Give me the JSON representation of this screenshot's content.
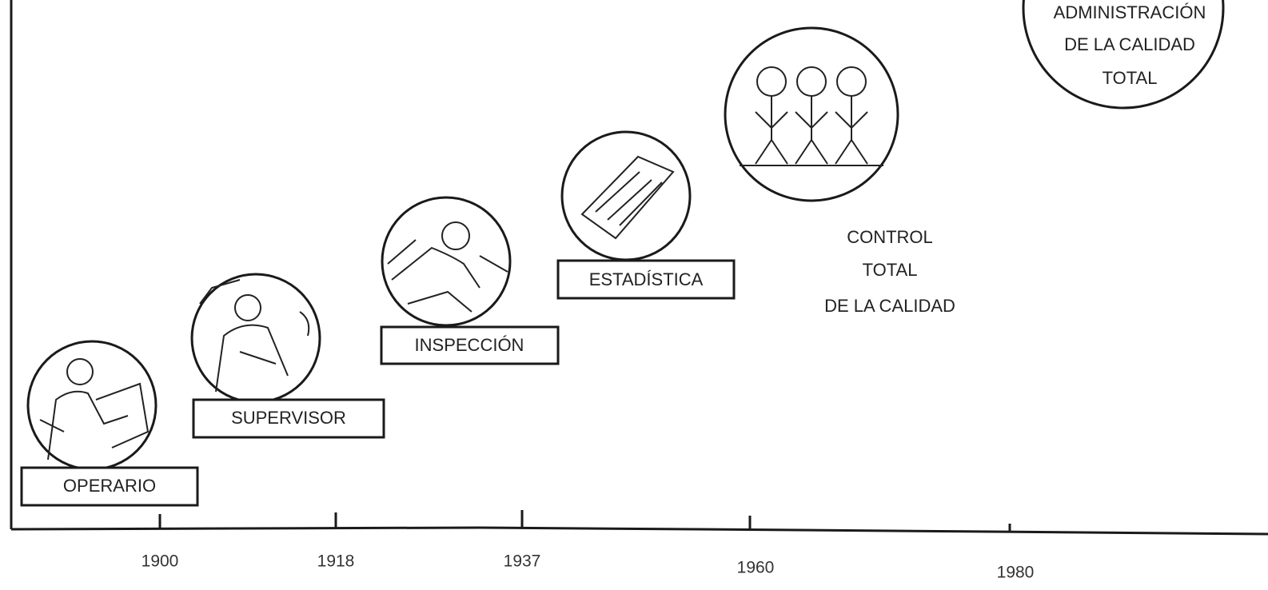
{
  "stages": [
    {
      "label": [
        "OPERARIO"
      ]
    },
    {
      "label": [
        "SUPERVISOR"
      ]
    },
    {
      "label": [
        "INSPECCIÓN"
      ]
    },
    {
      "label": [
        "ESTADÍSTICA"
      ]
    },
    {
      "label": [
        "CONTROL",
        "TOTAL",
        "DE LA CALIDAD"
      ]
    },
    {
      "label": [
        "ADMINISTRACIÓN",
        "DE LA CALIDAD",
        "TOTAL"
      ]
    }
  ],
  "years": [
    1900,
    1918,
    1937,
    1960,
    1980
  ]
}
